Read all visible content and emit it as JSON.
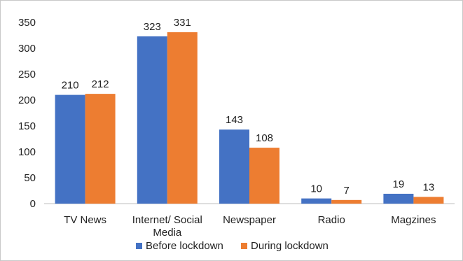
{
  "chart_data": {
    "type": "bar",
    "categories": [
      "TV News",
      "Internet/ Social Media",
      "Newspaper",
      "Radio",
      "Magzines"
    ],
    "category_lines": [
      [
        "TV News"
      ],
      [
        "Internet/ Social",
        "Media"
      ],
      [
        "Newspaper"
      ],
      [
        "Radio"
      ],
      [
        "Magzines"
      ]
    ],
    "series": [
      {
        "name": "Before lockdown",
        "values": [
          210,
          323,
          143,
          10,
          19
        ],
        "color": "#4472c4"
      },
      {
        "name": "During lockdown",
        "values": [
          212,
          331,
          108,
          7,
          13
        ],
        "color": "#ed7d31"
      }
    ],
    "ylim": [
      0,
      350
    ],
    "yticks": [
      0,
      50,
      100,
      150,
      200,
      250,
      300,
      350
    ],
    "title": "",
    "xlabel": "",
    "ylabel": "",
    "grid": false,
    "legend_position": "bottom"
  }
}
